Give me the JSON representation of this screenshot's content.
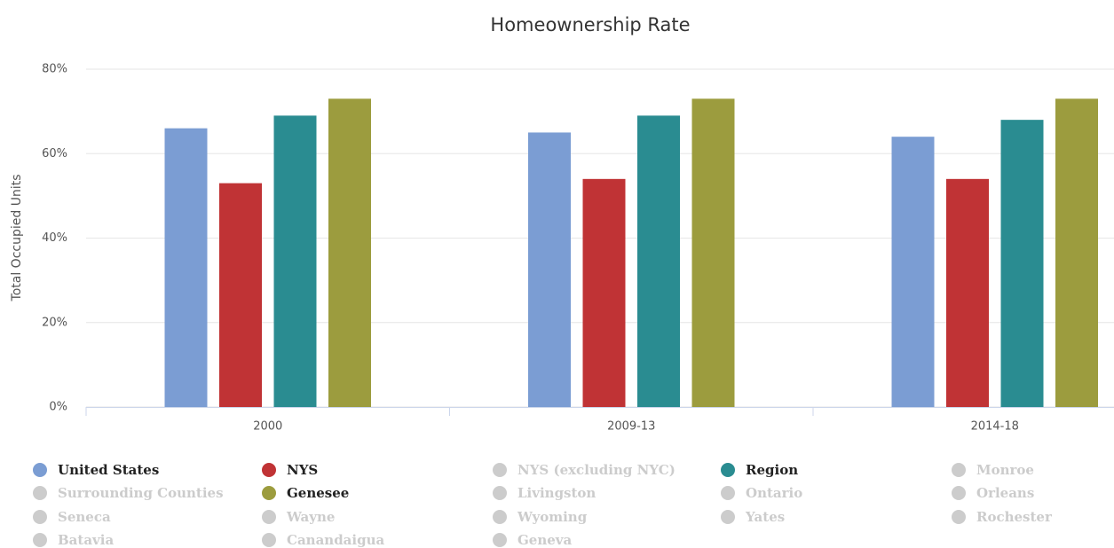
{
  "chart_data": {
    "type": "bar",
    "title": "Homeownership Rate",
    "y_label": "Total Occupied Units",
    "categories": [
      "2000",
      "2009-13",
      "2014-18"
    ],
    "ylim": [
      0,
      80
    ],
    "yticks": [
      {
        "value": 0,
        "label": "0%"
      },
      {
        "value": 20,
        "label": "20%"
      },
      {
        "value": 40,
        "label": "40%"
      },
      {
        "value": 60,
        "label": "60%"
      },
      {
        "value": 80,
        "label": "80%"
      }
    ],
    "grid": true,
    "hidden_color": "#cccccc",
    "series": [
      {
        "name": "United States",
        "color": "#7b9dd3",
        "visible": true,
        "values": [
          66,
          65,
          64
        ]
      },
      {
        "name": "NYS",
        "color": "#c03335",
        "visible": true,
        "values": [
          53,
          54,
          54
        ]
      },
      {
        "name": "NYS (excluding NYC)",
        "visible": false
      },
      {
        "name": "Region",
        "color": "#2a8c91",
        "visible": true,
        "values": [
          69,
          69,
          68
        ]
      },
      {
        "name": "Monroe",
        "visible": false
      },
      {
        "name": "Surrounding Counties",
        "visible": false
      },
      {
        "name": "Genesee",
        "color": "#9c9c3e",
        "visible": true,
        "values": [
          73,
          73,
          73
        ]
      },
      {
        "name": "Livingston",
        "visible": false
      },
      {
        "name": "Ontario",
        "visible": false
      },
      {
        "name": "Orleans",
        "visible": false
      },
      {
        "name": "Seneca",
        "visible": false
      },
      {
        "name": "Wayne",
        "visible": false
      },
      {
        "name": "Wyoming",
        "visible": false
      },
      {
        "name": "Yates",
        "visible": false
      },
      {
        "name": "Rochester",
        "visible": false
      },
      {
        "name": "Batavia",
        "visible": false
      },
      {
        "name": "Canandaigua",
        "visible": false
      },
      {
        "name": "Geneva",
        "visible": false
      }
    ]
  }
}
